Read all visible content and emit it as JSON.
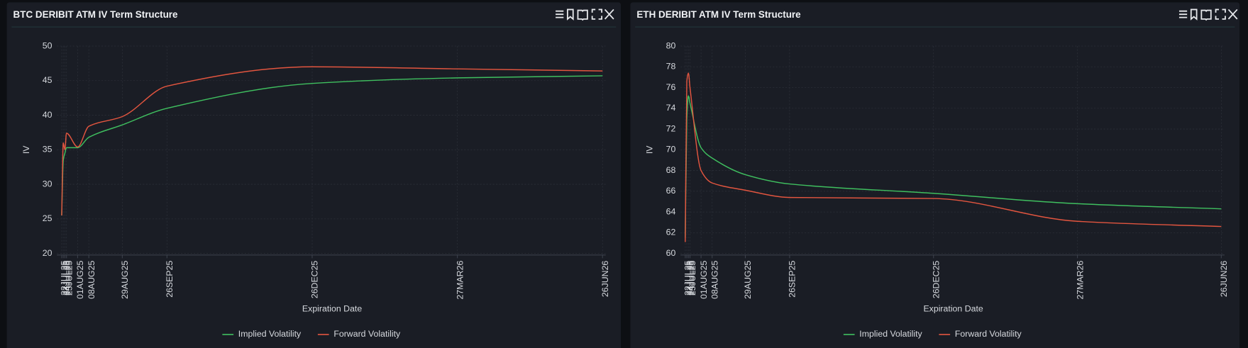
{
  "chart_data": [
    {
      "type": "line",
      "title": "BTC DERIBIT ATM IV Term Structure",
      "x_label": "Expiration Date",
      "y_label": "IV",
      "x": [
        "22JUL25",
        "23JUL25",
        "24JUL25",
        "25JUL25",
        "01AUG25",
        "08AUG25",
        "29AUG25",
        "26SEP25",
        "26DEC25",
        "27MAR26",
        "26JUN26"
      ],
      "xlim": [
        "22JUL25",
        "26JUN26"
      ],
      "ylim": [
        20,
        50
      ],
      "yticks": [
        20,
        25,
        30,
        35,
        40,
        45,
        50
      ],
      "grid": true,
      "legend": "bottom",
      "series": [
        {
          "name": "Implied Volatility",
          "color": "#3fbf5f",
          "values": [
            25.5,
            33.5,
            34.5,
            35.3,
            35.3,
            36.8,
            38.6,
            41.0,
            44.6,
            45.4,
            45.7
          ]
        },
        {
          "name": "Forward Volatility",
          "color": "#e2553f",
          "values": [
            25.5,
            36.0,
            35.0,
            37.4,
            35.4,
            38.4,
            39.8,
            44.2,
            47.0,
            46.7,
            46.4
          ]
        }
      ]
    },
    {
      "type": "line",
      "title": "ETH DERIBIT ATM IV Term Structure",
      "x_label": "Expiration Date",
      "y_label": "IV",
      "x": [
        "22JUL25",
        "23JUL25",
        "24JUL25",
        "25JUL25",
        "01AUG25",
        "08AUG25",
        "29AUG25",
        "26SEP25",
        "26DEC25",
        "27MAR26",
        "26JUN26"
      ],
      "xlim": [
        "22JUL25",
        "26JUN26"
      ],
      "ylim": [
        60,
        80
      ],
      "yticks": [
        60,
        62,
        64,
        66,
        68,
        70,
        72,
        74,
        76,
        78,
        80
      ],
      "grid": true,
      "legend": "bottom",
      "series": [
        {
          "name": "Implied Volatility",
          "color": "#3fbf5f",
          "values": [
            61.5,
            73.0,
            75.2,
            74.5,
            70.2,
            69.2,
            67.6,
            66.7,
            65.8,
            64.8,
            64.3
          ]
        },
        {
          "name": "Forward Volatility",
          "color": "#e2553f",
          "values": [
            61.1,
            76.6,
            77.4,
            76.0,
            68.0,
            66.8,
            66.1,
            65.4,
            65.3,
            63.1,
            62.6
          ]
        }
      ]
    }
  ]
}
